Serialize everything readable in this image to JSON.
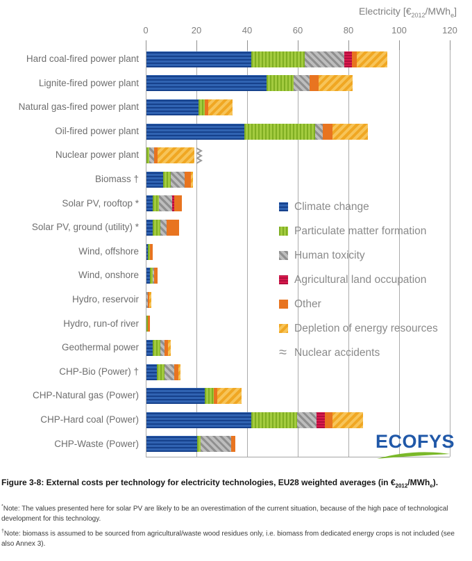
{
  "axis_title": {
    "prefix": "Electricity [€",
    "sub_year": "2012",
    "mid": "/MWh",
    "sub_e": "e",
    "suffix": "]"
  },
  "chart_data": {
    "type": "bar",
    "orientation": "horizontal-stacked",
    "xlabel": "Electricity [€2012/MWhe]",
    "xlim": [
      0,
      120
    ],
    "xticks": [
      0,
      20,
      40,
      60,
      80,
      100,
      120
    ],
    "grid": true,
    "legend_position": "center-right",
    "categories": [
      "Hard coal-fired power plant",
      "Lignite-fired power plant",
      "Natural gas-fired power plant",
      "Oil-fired power plant",
      "Nuclear power plant",
      "Biomass †",
      "Solar PV, rooftop *",
      "Solar PV, ground (utility) *",
      "Wind, offshore",
      "Wind, onshore",
      "Hydro, reservoir",
      "Hydro, run-of river",
      "Geothermal power",
      "CHP-Bio (Power) †",
      "CHP-Natural gas (Power)",
      "CHP-Hard coal (Power)",
      "CHP-Waste (Power)"
    ],
    "series": [
      {
        "name": "Climate change",
        "key": "climate",
        "values": [
          41.5,
          47.5,
          20.5,
          38.5,
          0,
          6.5,
          2.5,
          2.5,
          0.5,
          1.5,
          0,
          0,
          2.5,
          4,
          23,
          41.5,
          20
        ]
      },
      {
        "name": "Particulate matter formation",
        "key": "particulate",
        "values": [
          21,
          10.5,
          2.5,
          28,
          1,
          3,
          2.5,
          3,
          1,
          1,
          0,
          0.5,
          3,
          3,
          3.5,
          18,
          1.5
        ]
      },
      {
        "name": "Human toxicity",
        "key": "humantox",
        "values": [
          15.5,
          6.5,
          0,
          3,
          2,
          5.5,
          5,
          2.5,
          0,
          0.5,
          0.5,
          0,
          1.5,
          4,
          0,
          7.5,
          12
        ]
      },
      {
        "name": "Agricultural land occupation",
        "key": "agriland",
        "values": [
          3,
          0,
          0,
          0,
          0,
          0,
          1,
          0,
          0,
          0,
          0,
          0,
          0,
          0,
          0,
          3.5,
          0
        ]
      },
      {
        "name": "Other",
        "key": "other",
        "values": [
          2,
          3.5,
          1.5,
          4,
          1.5,
          2.5,
          3,
          5,
          1,
          1.5,
          0.5,
          1,
          1.5,
          1.5,
          1.5,
          3,
          1.5
        ]
      },
      {
        "name": "Depletion of energy resources",
        "key": "depletion",
        "values": [
          12,
          13.5,
          9.5,
          14,
          14.5,
          1,
          0,
          0,
          0,
          0,
          1,
          0,
          1,
          1,
          9.5,
          12,
          0
        ]
      }
    ],
    "legend": [
      {
        "label": "Climate change",
        "key": "climate"
      },
      {
        "label": "Particulate matter formation",
        "key": "particulate"
      },
      {
        "label": "Human toxicity",
        "key": "humantox"
      },
      {
        "label": "Agricultural land occupation",
        "key": "agriland"
      },
      {
        "label": "Other",
        "key": "other"
      },
      {
        "label": "Depletion of energy resources",
        "key": "depletion"
      },
      {
        "label": "Nuclear accidents",
        "key": "nuclear_accidents",
        "symbol": "≈"
      }
    ],
    "axis_break_category": "Nuclear power plant",
    "colors": {
      "climate": "#2a5aa8",
      "particulate": "#8fbc2e",
      "humantox": "#a6a6a6",
      "agriland": "#d01646",
      "other": "#e87420",
      "depletion": "#f4b53e",
      "gridline": "#ababab",
      "axis_text": "#7f7f7f"
    }
  },
  "branding": {
    "logo_text": "ECOFYS"
  },
  "caption": {
    "part1": "Figure 3-8: External costs per technology for electricity technologies, EU28 weighted averages (in €",
    "sub_year": "2012",
    "part2": "/MWh",
    "sub_e": "e",
    "part3": ")."
  },
  "notes": {
    "solar": {
      "marker": "*",
      "text": "Note: The values presented here for solar PV are likely to be an overestimation of the current situation, because of the high pace of technological development for this technology."
    },
    "biomass": {
      "marker": "†",
      "text": "Note: biomass is assumed to be sourced from agricultural/waste wood residues only, i.e. biomass from dedicated energy crops is not included (see also Annex 3)."
    }
  }
}
